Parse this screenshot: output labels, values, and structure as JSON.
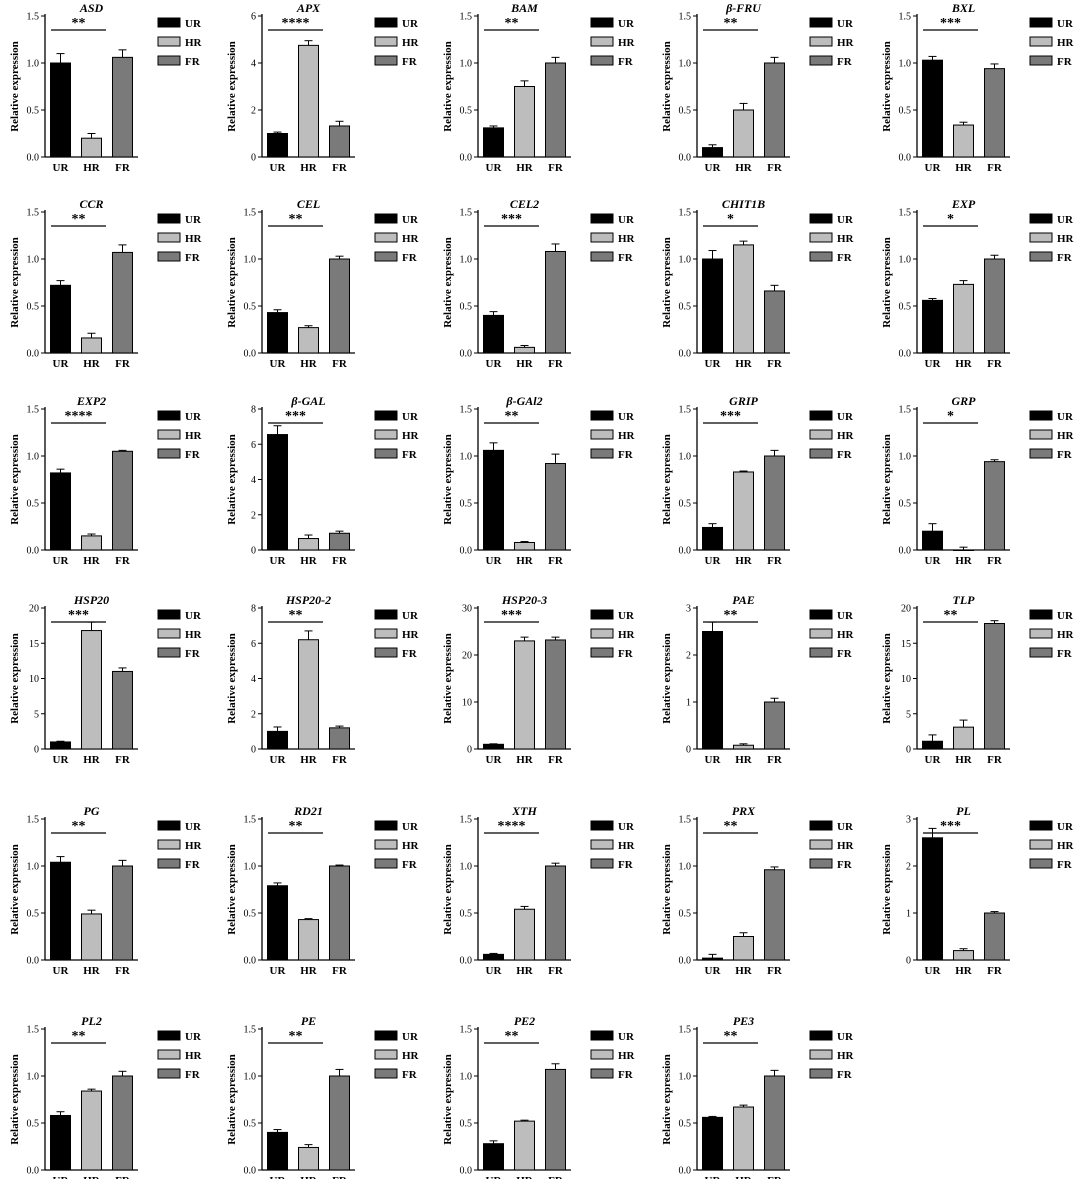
{
  "legend_labels": [
    "UR",
    "HR",
    "FR"
  ],
  "y_label": "Relative expression",
  "bar_colors": {
    "UR": "#000000",
    "HR": "#bdbdbd",
    "FR": "#7a7a7a"
  },
  "chart_data": [
    {
      "type": "bar",
      "title": "ASD",
      "categories": [
        "UR",
        "HR",
        "FR"
      ],
      "values": [
        1.0,
        0.2,
        1.06
      ],
      "errors": [
        0.1,
        0.05,
        0.08
      ],
      "ylim": [
        0,
        1.5
      ],
      "yticks": [
        0,
        0.5,
        1.0,
        1.5
      ],
      "ylabel": "Relative expression",
      "significance": "**"
    },
    {
      "type": "bar",
      "title": "APX",
      "categories": [
        "UR",
        "HR",
        "FR"
      ],
      "values": [
        1.0,
        4.75,
        1.32
      ],
      "errors": [
        0.06,
        0.2,
        0.2
      ],
      "ylim": [
        0,
        6
      ],
      "yticks": [
        0,
        2,
        4,
        6
      ],
      "ylabel": "Relative expression",
      "significance": "****"
    },
    {
      "type": "bar",
      "title": "BAM",
      "categories": [
        "UR",
        "HR",
        "FR"
      ],
      "values": [
        0.31,
        0.75,
        1.0
      ],
      "errors": [
        0.02,
        0.06,
        0.06
      ],
      "ylim": [
        0,
        1.5
      ],
      "yticks": [
        0,
        0.5,
        1.0,
        1.5
      ],
      "ylabel": "Relative expression",
      "significance": "**"
    },
    {
      "type": "bar",
      "title": "β-FRU",
      "categories": [
        "UR",
        "HR",
        "FR"
      ],
      "values": [
        0.1,
        0.5,
        1.0
      ],
      "errors": [
        0.03,
        0.07,
        0.06
      ],
      "ylim": [
        0,
        1.5
      ],
      "yticks": [
        0,
        0.5,
        1.0,
        1.5
      ],
      "ylabel": "Relative expression",
      "significance": "**"
    },
    {
      "type": "bar",
      "title": "BXL",
      "categories": [
        "UR",
        "HR",
        "FR"
      ],
      "values": [
        1.03,
        0.34,
        0.94
      ],
      "errors": [
        0.04,
        0.03,
        0.05
      ],
      "ylim": [
        0,
        1.5
      ],
      "yticks": [
        0,
        0.5,
        1.0,
        1.5
      ],
      "ylabel": "Relative expression",
      "significance": "***"
    },
    {
      "type": "bar",
      "title": "CCR",
      "categories": [
        "UR",
        "HR",
        "FR"
      ],
      "values": [
        0.72,
        0.16,
        1.07
      ],
      "errors": [
        0.05,
        0.05,
        0.08
      ],
      "ylim": [
        0,
        1.5
      ],
      "yticks": [
        0,
        0.5,
        1.0,
        1.5
      ],
      "ylabel": "Relative expression",
      "significance": "**"
    },
    {
      "type": "bar",
      "title": "CEL",
      "categories": [
        "UR",
        "HR",
        "FR"
      ],
      "values": [
        0.43,
        0.27,
        1.0
      ],
      "errors": [
        0.03,
        0.02,
        0.03
      ],
      "ylim": [
        0,
        1.5
      ],
      "yticks": [
        0,
        0.5,
        1.0,
        1.5
      ],
      "ylabel": "Relative expression",
      "significance": "**"
    },
    {
      "type": "bar",
      "title": "CEL2",
      "categories": [
        "UR",
        "HR",
        "FR"
      ],
      "values": [
        0.4,
        0.06,
        1.08
      ],
      "errors": [
        0.04,
        0.02,
        0.08
      ],
      "ylim": [
        0,
        1.5
      ],
      "yticks": [
        0,
        0.5,
        1.0,
        1.5
      ],
      "ylabel": "Relative expression",
      "significance": "***"
    },
    {
      "type": "bar",
      "title": "CHIT1B",
      "categories": [
        "UR",
        "HR",
        "FR"
      ],
      "values": [
        1.0,
        1.15,
        0.66
      ],
      "errors": [
        0.09,
        0.04,
        0.06
      ],
      "ylim": [
        0,
        1.5
      ],
      "yticks": [
        0,
        0.5,
        1.0,
        1.5
      ],
      "ylabel": "Relative expression",
      "significance": "*"
    },
    {
      "type": "bar",
      "title": "EXP",
      "categories": [
        "UR",
        "HR",
        "FR"
      ],
      "values": [
        0.56,
        0.73,
        1.0
      ],
      "errors": [
        0.02,
        0.04,
        0.04
      ],
      "ylim": [
        0,
        1.5
      ],
      "yticks": [
        0,
        0.5,
        1.0,
        1.5
      ],
      "ylabel": "Relative expression",
      "significance": "*"
    },
    {
      "type": "bar",
      "title": "EXP2",
      "categories": [
        "UR",
        "HR",
        "FR"
      ],
      "values": [
        0.82,
        0.15,
        1.05
      ],
      "errors": [
        0.04,
        0.02,
        0.01
      ],
      "ylim": [
        0,
        1.5
      ],
      "yticks": [
        0,
        0.5,
        1.0,
        1.5
      ],
      "ylabel": "Relative expression",
      "significance": "****"
    },
    {
      "type": "bar",
      "title": "β-GAL",
      "categories": [
        "UR",
        "HR",
        "FR"
      ],
      "values": [
        6.55,
        0.65,
        0.95
      ],
      "errors": [
        0.5,
        0.2,
        0.12
      ],
      "ylim": [
        0,
        8
      ],
      "yticks": [
        0,
        2,
        4,
        6,
        8
      ],
      "ylabel": "Relative expression",
      "significance": "***"
    },
    {
      "type": "bar",
      "title": "β-GAl2",
      "categories": [
        "UR",
        "HR",
        "FR"
      ],
      "values": [
        1.06,
        0.08,
        0.92
      ],
      "errors": [
        0.08,
        0.01,
        0.1
      ],
      "ylim": [
        0,
        1.5
      ],
      "yticks": [
        0,
        0.5,
        1.0,
        1.5
      ],
      "ylabel": "Relative expression",
      "significance": "**"
    },
    {
      "type": "bar",
      "title": "GRIP",
      "categories": [
        "UR",
        "HR",
        "FR"
      ],
      "values": [
        0.24,
        0.83,
        1.0
      ],
      "errors": [
        0.04,
        0.01,
        0.06
      ],
      "ylim": [
        0,
        1.5
      ],
      "yticks": [
        0,
        0.5,
        1.0,
        1.5
      ],
      "ylabel": "Relative expression",
      "significance": "***"
    },
    {
      "type": "bar",
      "title": "GRP",
      "categories": [
        "UR",
        "HR",
        "FR"
      ],
      "values": [
        0.2,
        0.0,
        0.94
      ],
      "errors": [
        0.08,
        0.03,
        0.02
      ],
      "ylim": [
        0,
        1.5
      ],
      "yticks": [
        0,
        0.5,
        1.0,
        1.5
      ],
      "ylabel": "Relative expression",
      "significance": "*"
    },
    {
      "type": "bar",
      "title": "HSP20",
      "categories": [
        "UR",
        "HR",
        "FR"
      ],
      "values": [
        1.0,
        16.8,
        11.0
      ],
      "errors": [
        0.1,
        1.2,
        0.5
      ],
      "ylim": [
        0,
        20
      ],
      "yticks": [
        0,
        5,
        10,
        15,
        20
      ],
      "ylabel": "Relative expression",
      "significance": "***"
    },
    {
      "type": "bar",
      "title": "HSP20-2",
      "categories": [
        "UR",
        "HR",
        "FR"
      ],
      "values": [
        1.0,
        6.2,
        1.2
      ],
      "errors": [
        0.25,
        0.5,
        0.1
      ],
      "ylim": [
        0,
        8
      ],
      "yticks": [
        0,
        2,
        4,
        6,
        8
      ],
      "ylabel": "Relative expression",
      "significance": "**"
    },
    {
      "type": "bar",
      "title": "HSP20-3",
      "categories": [
        "UR",
        "HR",
        "FR"
      ],
      "values": [
        1.0,
        23.0,
        23.2
      ],
      "errors": [
        0.1,
        0.8,
        0.6
      ],
      "ylim": [
        0,
        30
      ],
      "yticks": [
        0,
        10,
        20,
        30
      ],
      "ylabel": "Relative expression",
      "significance": "***"
    },
    {
      "type": "bar",
      "title": "PAE",
      "categories": [
        "UR",
        "HR",
        "FR"
      ],
      "values": [
        2.5,
        0.08,
        1.0
      ],
      "errors": [
        0.2,
        0.03,
        0.08
      ],
      "ylim": [
        0,
        3
      ],
      "yticks": [
        0,
        1,
        2,
        3
      ],
      "ylabel": "Relative expression",
      "significance": "**"
    },
    {
      "type": "bar",
      "title": "TLP",
      "categories": [
        "UR",
        "HR",
        "FR"
      ],
      "values": [
        1.1,
        3.1,
        17.8
      ],
      "errors": [
        0.9,
        1.0,
        0.4
      ],
      "ylim": [
        0,
        20
      ],
      "yticks": [
        0,
        5,
        10,
        15,
        20
      ],
      "ylabel": "Relative expression",
      "significance": "**"
    },
    {
      "type": "bar",
      "title": "PG",
      "categories": [
        "UR",
        "HR",
        "FR"
      ],
      "values": [
        1.04,
        0.49,
        1.0
      ],
      "errors": [
        0.06,
        0.04,
        0.06
      ],
      "ylim": [
        0,
        1.5
      ],
      "yticks": [
        0,
        0.5,
        1.0,
        1.5
      ],
      "ylabel": "Relative expression",
      "significance": "**"
    },
    {
      "type": "bar",
      "title": "RD21",
      "categories": [
        "UR",
        "HR",
        "FR"
      ],
      "values": [
        0.79,
        0.43,
        1.0
      ],
      "errors": [
        0.03,
        0.01,
        0.01
      ],
      "ylim": [
        0,
        1.5
      ],
      "yticks": [
        0,
        0.5,
        1.0,
        1.5
      ],
      "ylabel": "Relative expression",
      "significance": "**"
    },
    {
      "type": "bar",
      "title": "XTH",
      "categories": [
        "UR",
        "HR",
        "FR"
      ],
      "values": [
        0.06,
        0.54,
        1.0
      ],
      "errors": [
        0.01,
        0.03,
        0.03
      ],
      "ylim": [
        0,
        1.5
      ],
      "yticks": [
        0,
        0.5,
        1.0,
        1.5
      ],
      "ylabel": "Relative expression",
      "significance": "****"
    },
    {
      "type": "bar",
      "title": "PRX",
      "categories": [
        "UR",
        "HR",
        "FR"
      ],
      "values": [
        0.02,
        0.25,
        0.96
      ],
      "errors": [
        0.04,
        0.04,
        0.03
      ],
      "ylim": [
        0,
        1.5
      ],
      "yticks": [
        0,
        0.5,
        1.0,
        1.5
      ],
      "ylabel": "Relative expression",
      "significance": "**"
    },
    {
      "type": "bar",
      "title": "PL",
      "categories": [
        "UR",
        "HR",
        "FR"
      ],
      "values": [
        2.6,
        0.2,
        1.0
      ],
      "errors": [
        0.2,
        0.04,
        0.03
      ],
      "ylim": [
        0,
        3
      ],
      "yticks": [
        0,
        1,
        2,
        3
      ],
      "ylabel": "Relative expression",
      "significance": "***"
    },
    {
      "type": "bar",
      "title": "PL2",
      "categories": [
        "UR",
        "HR",
        "FR"
      ],
      "values": [
        0.58,
        0.84,
        1.0
      ],
      "errors": [
        0.04,
        0.02,
        0.05
      ],
      "ylim": [
        0,
        1.5
      ],
      "yticks": [
        0,
        0.5,
        1.0,
        1.5
      ],
      "ylabel": "Relative expression",
      "significance": "**"
    },
    {
      "type": "bar",
      "title": "PE",
      "categories": [
        "UR",
        "HR",
        "FR"
      ],
      "values": [
        0.4,
        0.24,
        1.0
      ],
      "errors": [
        0.03,
        0.03,
        0.07
      ],
      "ylim": [
        0,
        1.5
      ],
      "yticks": [
        0,
        0.5,
        1.0,
        1.5
      ],
      "ylabel": "Relative expression",
      "significance": "**"
    },
    {
      "type": "bar",
      "title": "PE2",
      "categories": [
        "UR",
        "HR",
        "FR"
      ],
      "values": [
        0.28,
        0.52,
        1.07
      ],
      "errors": [
        0.03,
        0.01,
        0.06
      ],
      "ylim": [
        0,
        1.5
      ],
      "yticks": [
        0,
        0.5,
        1.0,
        1.5
      ],
      "ylabel": "Relative expression",
      "significance": "**"
    },
    {
      "type": "bar",
      "title": "PE3",
      "categories": [
        "UR",
        "HR",
        "FR"
      ],
      "values": [
        0.56,
        0.67,
        1.0
      ],
      "errors": [
        0.01,
        0.02,
        0.06
      ],
      "ylim": [
        0,
        1.5
      ],
      "yticks": [
        0,
        0.5,
        1.0,
        1.5
      ],
      "ylabel": "Relative expression",
      "significance": "**"
    }
  ]
}
